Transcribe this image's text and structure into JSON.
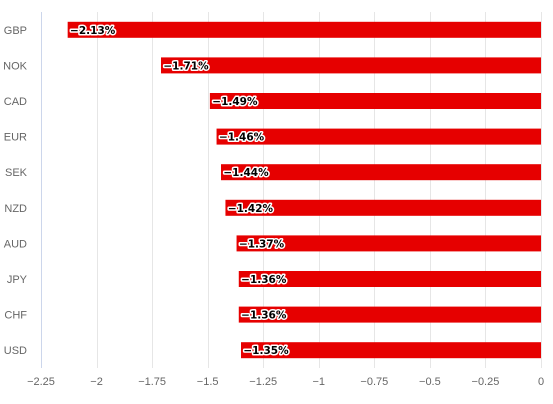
{
  "chart_data": {
    "type": "bar",
    "orientation": "horizontal",
    "categories": [
      "GBP",
      "NOK",
      "CAD",
      "EUR",
      "SEK",
      "NZD",
      "AUD",
      "JPY",
      "CHF",
      "USD"
    ],
    "values": [
      -2.13,
      -1.71,
      -1.49,
      -1.46,
      -1.44,
      -1.42,
      -1.37,
      -1.36,
      -1.36,
      -1.35
    ],
    "data_labels": [
      "−2.13%",
      "−1.71%",
      "−1.49%",
      "−1.46%",
      "−1.44%",
      "−1.42%",
      "−1.37%",
      "−1.36%",
      "−1.36%",
      "−1.35%"
    ],
    "xlim": [
      -2.25,
      0
    ],
    "x_ticks": [
      -2.25,
      -2,
      -1.75,
      -1.5,
      -1.25,
      -1,
      -0.75,
      -0.5,
      -0.25,
      0
    ],
    "x_tick_labels": [
      "−2.25",
      "−2",
      "−1.75",
      "−1.5",
      "−1.25",
      "−1",
      "−0.75",
      "−0.5",
      "−0.25",
      "0"
    ],
    "grid": true,
    "legend": "none",
    "title": "",
    "xlabel": "",
    "ylabel": "",
    "colors": {
      "bar": "#e60000",
      "grid": "#e6e6e6",
      "axis_line": "#ccd6eb"
    }
  }
}
